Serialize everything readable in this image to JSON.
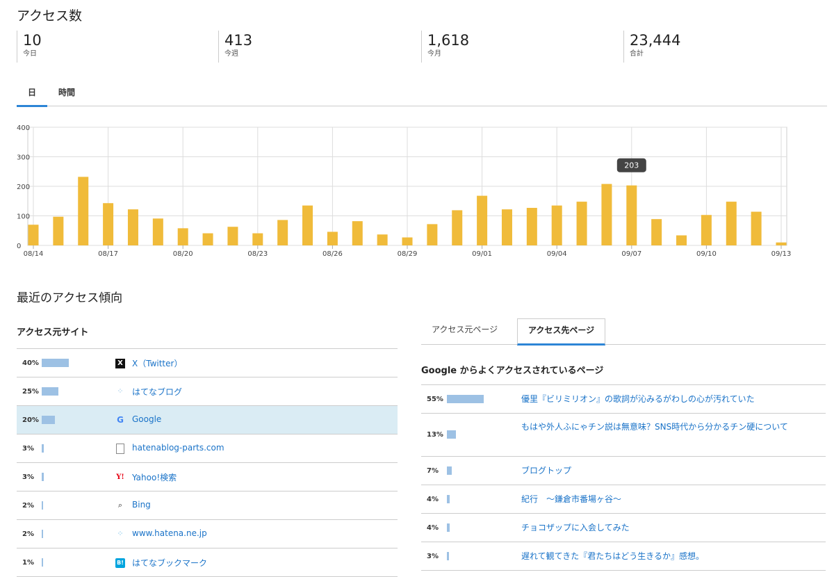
{
  "header": {
    "title": "アクセス数"
  },
  "stats": [
    {
      "value": "10",
      "label": "今日"
    },
    {
      "value": "413",
      "label": "今週"
    },
    {
      "value": "1,618",
      "label": "今月"
    },
    {
      "value": "23,444",
      "label": "合計"
    }
  ],
  "period_tabs": [
    {
      "label": "日",
      "active": true
    },
    {
      "label": "時間",
      "active": false
    }
  ],
  "chart_data": {
    "type": "bar",
    "x": [
      "08/14",
      "08/15",
      "08/16",
      "08/17",
      "08/18",
      "08/19",
      "08/20",
      "08/21",
      "08/22",
      "08/23",
      "08/24",
      "08/25",
      "08/26",
      "08/27",
      "08/28",
      "08/29",
      "08/30",
      "08/31",
      "09/01",
      "09/02",
      "09/03",
      "09/04",
      "09/05",
      "09/06",
      "09/07",
      "09/08",
      "09/09",
      "09/10",
      "09/11",
      "09/12",
      "09/13"
    ],
    "values": [
      70,
      97,
      232,
      143,
      122,
      91,
      58,
      41,
      63,
      41,
      86,
      135,
      46,
      82,
      37,
      27,
      72,
      119,
      168,
      122,
      127,
      135,
      148,
      208,
      203,
      89,
      34,
      103,
      148,
      114,
      10
    ],
    "xtick_labels": [
      "08/14",
      "08/17",
      "08/20",
      "08/23",
      "08/26",
      "08/29",
      "09/01",
      "09/04",
      "09/07",
      "09/10",
      "09/13"
    ],
    "yticks": [
      0,
      100,
      200,
      300,
      400
    ],
    "ylim": [
      0,
      400
    ],
    "grid": true,
    "color": "#f0bb3a",
    "tooltip": {
      "date": "09/07",
      "value": "203"
    }
  },
  "trend": {
    "title": "最近のアクセス傾向"
  },
  "sources": {
    "title": "アクセス元サイト",
    "rows": [
      {
        "pct": "40%",
        "share": 40,
        "icon": "x-logo-icon",
        "name": "X（Twitter）"
      },
      {
        "pct": "25%",
        "share": 25,
        "icon": "hatena-blog-icon",
        "name": "はてなブログ"
      },
      {
        "pct": "20%",
        "share": 20,
        "icon": "google-g-icon",
        "name": "Google",
        "highlight": true
      },
      {
        "pct": "3%",
        "share": 3,
        "icon": "document-icon",
        "name": "hatenablog-parts.com"
      },
      {
        "pct": "3%",
        "share": 3,
        "icon": "yahoo-icon",
        "name": "Yahoo!検索"
      },
      {
        "pct": "2%",
        "share": 2,
        "icon": "search-icon",
        "name": "Bing"
      },
      {
        "pct": "2%",
        "share": 2,
        "icon": "hatena-icon",
        "name": "www.hatena.ne.jp"
      },
      {
        "pct": "1%",
        "share": 1,
        "icon": "hatena-bookmark-icon",
        "name": "はてなブックマーク"
      }
    ]
  },
  "page_tabs": [
    {
      "label": "アクセス元ページ",
      "active": false
    },
    {
      "label": "アクセス先ページ",
      "active": true
    }
  ],
  "pages": {
    "title": "Google からよくアクセスされているページ",
    "rows": [
      {
        "pct": "55%",
        "share": 55,
        "title": "優里『ビリミリオン』の歌詞が沁みるがわしの心が汚れていた"
      },
      {
        "pct": "13%",
        "share": 13,
        "title": "もはや外人ふにゃチン説は無意味？SNS時代から分かるチン硬について"
      },
      {
        "pct": "7%",
        "share": 7,
        "title": "ブログトップ"
      },
      {
        "pct": "4%",
        "share": 4,
        "title": "紀行　〜鎌倉市番場ヶ谷〜"
      },
      {
        "pct": "4%",
        "share": 4,
        "title": "チョコザップに入会してみた"
      },
      {
        "pct": "3%",
        "share": 3,
        "title": "遅れて観てきた『君たちはどう生きるか』感想。"
      }
    ]
  },
  "colors": {
    "accent": "#2d85d6",
    "bar_share": "#9dc1e4",
    "link": "#1a73c8",
    "highlight": "#daecf4"
  }
}
